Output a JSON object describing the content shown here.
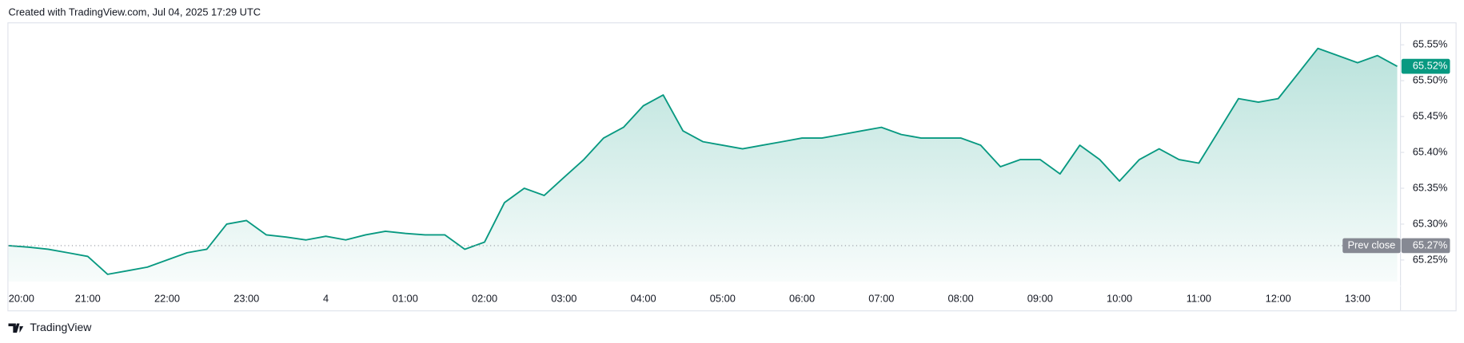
{
  "chart_data": {
    "type": "area",
    "title": "Created with TradingView.com, Jul 04, 2025 17:29 UTC",
    "brand": "TradingView",
    "color": "#089981",
    "categories": [
      "20:00",
      null,
      null,
      null,
      "21:00",
      null,
      null,
      null,
      "22:00",
      null,
      null,
      null,
      "23:00",
      null,
      null,
      null,
      "4",
      null,
      null,
      null,
      "01:00",
      null,
      null,
      null,
      "02:00",
      null,
      null,
      null,
      "03:00",
      null,
      null,
      null,
      "04:00",
      null,
      null,
      null,
      "05:00",
      null,
      null,
      null,
      "06:00",
      null,
      null,
      null,
      "07:00",
      null,
      null,
      null,
      "08:00",
      null,
      null,
      null,
      "09:00",
      null,
      null,
      null,
      "10:00",
      null,
      null,
      null,
      "11:00",
      null,
      null,
      null,
      "12:00",
      null,
      null,
      null,
      "13:00",
      null,
      null
    ],
    "values": [
      65.27,
      65.268,
      65.265,
      65.26,
      65.255,
      65.23,
      65.235,
      65.24,
      65.25,
      65.26,
      65.265,
      65.3,
      65.305,
      65.285,
      65.282,
      65.278,
      65.283,
      65.278,
      65.285,
      65.29,
      65.287,
      65.285,
      65.285,
      65.265,
      65.275,
      65.33,
      65.35,
      65.34,
      65.365,
      65.39,
      65.42,
      65.435,
      65.465,
      65.48,
      65.43,
      65.415,
      65.41,
      65.405,
      65.41,
      65.415,
      65.42,
      65.42,
      65.425,
      65.43,
      65.435,
      65.425,
      65.42,
      65.42,
      65.42,
      65.41,
      65.38,
      65.39,
      65.39,
      65.37,
      65.41,
      65.39,
      65.36,
      65.39,
      65.405,
      65.39,
      65.385,
      65.43,
      65.475,
      65.47,
      65.475,
      65.51,
      65.545,
      65.535,
      65.525,
      65.535,
      65.52
    ],
    "last_label": {
      "value": 65.52,
      "label": "65.52%"
    },
    "prev_close": {
      "name": "Prev close",
      "value": 65.27,
      "label": "65.27%"
    },
    "ylim": [
      65.22,
      65.58
    ],
    "yticks": [
      {
        "value": 65.25,
        "label": "65.25%"
      },
      {
        "value": 65.3,
        "label": "65.30%"
      },
      {
        "value": 65.35,
        "label": "65.35%"
      },
      {
        "value": 65.4,
        "label": "65.40%"
      },
      {
        "value": 65.45,
        "label": "65.45%"
      },
      {
        "value": 65.5,
        "label": "65.50%"
      },
      {
        "value": 65.55,
        "label": "65.55%"
      }
    ]
  }
}
